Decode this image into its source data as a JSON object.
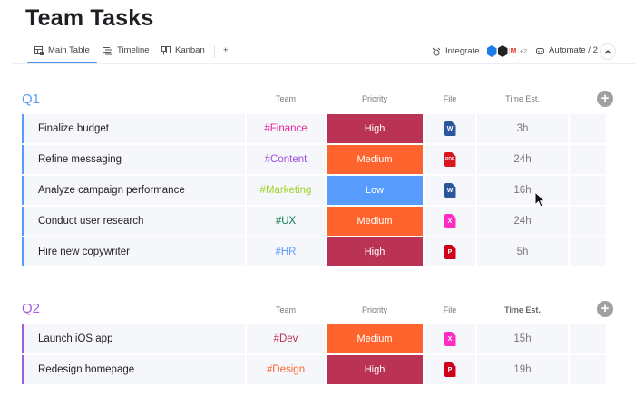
{
  "header": {
    "title": "Team Tasks"
  },
  "tabs": [
    {
      "label": "Main Table",
      "icon": "table-icon",
      "active": true
    },
    {
      "label": "Timeline",
      "icon": "timeline-icon",
      "active": false
    },
    {
      "label": "Kanban",
      "icon": "kanban-icon",
      "active": false
    }
  ],
  "toolbar": {
    "add_view": "+",
    "integrate_label": "Integrate",
    "integrations_more": "+2",
    "automate_label": "Automate / 2",
    "collapse": "^"
  },
  "columns": {
    "team": "Team",
    "priority": "Priority",
    "file": "File",
    "time": "Time Est."
  },
  "colors": {
    "q1": "#579bfc",
    "q2": "#a25ddc",
    "high": "#bb3354",
    "medium": "#ff642e",
    "low": "#579bfc"
  },
  "groups": [
    {
      "title": "Q1",
      "color": "#579bfc",
      "rows": [
        {
          "name": "Finalize budget",
          "team": "#Finance",
          "team_color": "#e8259a",
          "priority": "High",
          "prio_color": "#bb3354",
          "file": "W",
          "file_color": "#2b579a",
          "time": "3h"
        },
        {
          "name": "Refine messaging",
          "team": "#Content",
          "team_color": "#9d50dd",
          "priority": "Medium",
          "prio_color": "#ff642e",
          "file": "PDF",
          "file_color": "#d9171e",
          "time": "24h"
        },
        {
          "name": "Analyze campaign performance",
          "team": "#Marketing",
          "team_color": "#9cd326",
          "priority": "Low",
          "prio_color": "#579bfc",
          "file": "W",
          "file_color": "#2b579a",
          "time": "16h"
        },
        {
          "name": "Conduct user research",
          "team": "#UX",
          "team_color": "#037f4c",
          "priority": "Medium",
          "prio_color": "#ff642e",
          "file": "X",
          "file_color": "#ff2ec2",
          "time": "24h"
        },
        {
          "name": "Hire new copywriter",
          "team": "#HR",
          "team_color": "#579bfc",
          "priority": "High",
          "prio_color": "#bb3354",
          "file": "P",
          "file_color": "#d0021b",
          "time": "5h"
        }
      ]
    },
    {
      "title": "Q2",
      "color": "#a25ddc",
      "rows": [
        {
          "name": "Launch iOS app",
          "team": "#Dev",
          "team_color": "#bb3354",
          "priority": "Medium",
          "prio_color": "#ff642e",
          "file": "X",
          "file_color": "#ff2ec2",
          "time": "15h"
        },
        {
          "name": "Redesign homepage",
          "team": "#Design",
          "team_color": "#ff642e",
          "priority": "High",
          "prio_color": "#bb3354",
          "file": "P",
          "file_color": "#d0021b",
          "time": "19h"
        }
      ]
    }
  ]
}
